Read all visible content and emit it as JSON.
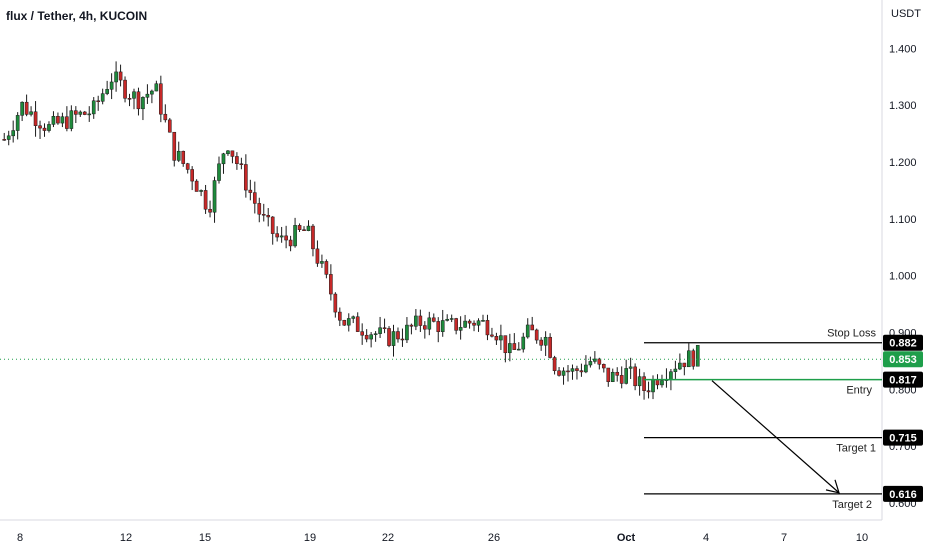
{
  "header": {
    "title": "flux / Tether, 4h, KUCOIN"
  },
  "colors": {
    "up": "#26a69a",
    "down": "#ef5350",
    "up_fill": "#1e8a3c",
    "down_fill": "#c62828",
    "axis_text": "#131722",
    "label_bg": "#000000",
    "label_text": "#ffffff",
    "current": "#1e9e4a"
  },
  "chart_data": {
    "type": "candlestick",
    "title": "flux / Tether, 4h, KUCOIN",
    "currency": "USDT",
    "y_ticks": [
      "1.400",
      "1.300",
      "1.200",
      "1.100",
      "1.000",
      "0.900",
      "0.800",
      "0.700",
      "0.600"
    ],
    "x_ticks": [
      "8",
      "12",
      "15",
      "19",
      "22",
      "26",
      "Oct",
      "4",
      "7",
      "10"
    ],
    "ylim": [
      0.57,
      1.45
    ],
    "current_price": "0.853",
    "levels": [
      {
        "name": "Stop Loss",
        "value": "0.882"
      },
      {
        "name": "Entry",
        "value": "0.817"
      },
      {
        "name": "Target 1",
        "value": "0.715"
      },
      {
        "name": "Target 2",
        "value": "0.616"
      }
    ],
    "series": [
      {
        "name": "flux / Tether",
        "path": [
          [
            0,
            1.24
          ],
          [
            2,
            1.3
          ],
          [
            5,
            1.26
          ],
          [
            8,
            1.28
          ],
          [
            10,
            1.29
          ],
          [
            12,
            1.35
          ],
          [
            15,
            1.31
          ],
          [
            17,
            1.33
          ],
          [
            19,
            1.22
          ],
          [
            21,
            1.18
          ],
          [
            23,
            1.12
          ],
          [
            25,
            1.24
          ],
          [
            27,
            1.17
          ],
          [
            29,
            1.1
          ],
          [
            31,
            1.06
          ],
          [
            34,
            1.08
          ],
          [
            36,
            1.0
          ],
          [
            38,
            0.92
          ],
          [
            40,
            0.91
          ],
          [
            43,
            0.89
          ],
          [
            45,
            0.9
          ],
          [
            47,
            0.92
          ],
          [
            50,
            0.91
          ],
          [
            53,
            0.92
          ],
          [
            55,
            0.91
          ],
          [
            57,
            0.86
          ],
          [
            59,
            0.9
          ],
          [
            61,
            0.89
          ],
          [
            62,
            0.84
          ],
          [
            64,
            0.83
          ],
          [
            66,
            0.85
          ],
          [
            68,
            0.82
          ],
          [
            70,
            0.83
          ],
          [
            72,
            0.8
          ],
          [
            74,
            0.83
          ],
          [
            76,
            0.85
          ],
          [
            78,
            0.86
          ]
        ]
      }
    ]
  }
}
